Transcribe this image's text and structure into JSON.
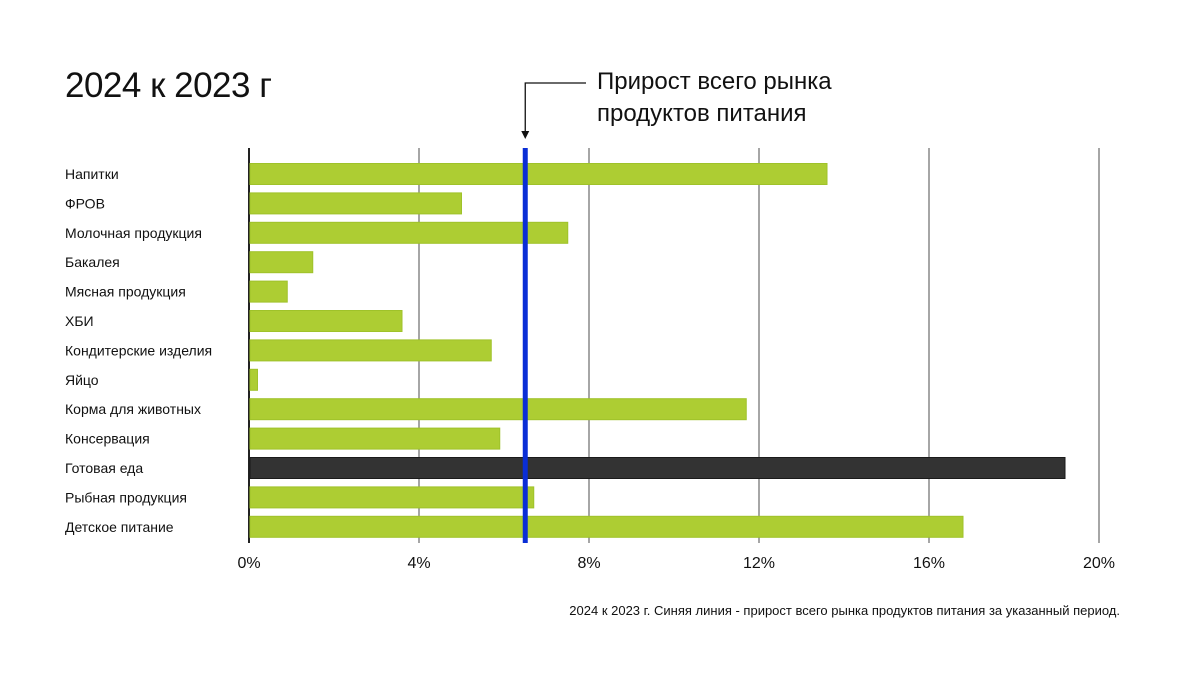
{
  "chart_data": {
    "type": "bar",
    "orientation": "horizontal",
    "title": "2024 к 2023 г",
    "annotation": "Прирост всего рынка продуктов питания",
    "annotation_lines": [
      "Прирост всего рынка",
      "продуктов питания"
    ],
    "footnote": "2024 к 2023 г. Синяя линия - прирост всего рынка продуктов питания за указанный период.",
    "categories": [
      "Напитки",
      "ФРОВ",
      "Молочная продукция",
      "Бакалея",
      "Мясная продукция",
      "ХБИ",
      "Кондитерские изделия",
      "Яйцо",
      "Корма для животных",
      "Консервация",
      "Готовая еда",
      "Рыбная продукция",
      "Детское питание"
    ],
    "values": [
      13.6,
      5.0,
      7.5,
      1.5,
      0.9,
      3.6,
      5.7,
      0.2,
      11.7,
      5.9,
      19.2,
      6.7,
      16.8
    ],
    "highlight_index": 10,
    "reference_line": 6.5,
    "xlim": [
      0,
      20
    ],
    "xticks": [
      0,
      4,
      8,
      12,
      16,
      20
    ],
    "xtick_labels": [
      "0%",
      "4%",
      "8%",
      "12%",
      "16%",
      "20%"
    ],
    "grid": true,
    "colors": {
      "bar": "#adcd33",
      "highlight": "#333333",
      "reference": "#0a2ed6",
      "grid": "#222222"
    }
  }
}
